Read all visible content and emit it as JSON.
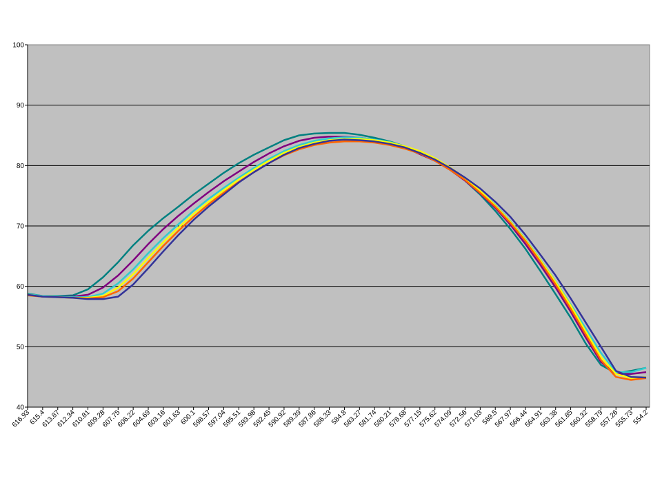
{
  "chart_data": {
    "type": "line",
    "categories": [
      "616.93",
      "615.4",
      "613.87",
      "612.34",
      "610.81",
      "609.28",
      "607.75",
      "606.22",
      "604.69",
      "603.16",
      "601.63",
      "600.1",
      "598.57",
      "597.04",
      "595.51",
      "593.98",
      "592.45",
      "590.92",
      "589.39",
      "587.86",
      "586.33",
      "584.8",
      "583.27",
      "581.74",
      "580.21",
      "578.68",
      "577.15",
      "575.62",
      "574.09",
      "572.56",
      "571.03",
      "569.5",
      "567.97",
      "566.44",
      "564.91",
      "563.38",
      "561.85",
      "560.32",
      "558.79",
      "557.26",
      "555.73",
      "554.2"
    ],
    "series": [
      {
        "color": "#008080",
        "values": [
          58.8,
          58.4,
          58.4,
          58.5,
          59.5,
          61.5,
          64,
          66.8,
          69.2,
          71.3,
          73.2,
          75.2,
          77,
          78.8,
          80.4,
          81.8,
          83,
          84.2,
          85,
          85.3,
          85.4,
          85.4,
          85.1,
          84.6,
          84,
          83.2,
          82,
          80.8,
          79.5,
          77.5,
          75.2,
          72.5,
          69.5,
          66.2,
          62.5,
          58.7,
          54.8,
          50.5,
          47,
          45.6,
          46,
          46.5
        ]
      },
      {
        "color": "#800080",
        "values": [
          58.6,
          58.3,
          58.3,
          58.3,
          58.6,
          59.8,
          61.8,
          64.3,
          67,
          69.5,
          71.7,
          73.7,
          75.6,
          77.4,
          79,
          80.6,
          82,
          83.2,
          84.1,
          84.6,
          84.8,
          84.8,
          84.6,
          84.3,
          83.8,
          83,
          81.9,
          80.8,
          79.3,
          77.5,
          75.4,
          73,
          70.2,
          67,
          63.5,
          59.8,
          55.8,
          51.5,
          47.5,
          45.5,
          45.5,
          45.8
        ]
      },
      {
        "color": "#33cccc",
        "values": [
          58.7,
          58.4,
          58.3,
          58.2,
          58.2,
          58.8,
          60.5,
          62.8,
          65.5,
          68,
          70.3,
          72.5,
          74.5,
          76.3,
          78,
          79.6,
          81.1,
          82.4,
          83.4,
          84.1,
          84.5,
          84.7,
          84.6,
          84.3,
          83.9,
          83.2,
          82.3,
          81,
          79.6,
          77.8,
          75.8,
          73.5,
          70.8,
          67.8,
          64.4,
          60.8,
          57,
          53,
          49,
          45.8,
          45.8,
          46.5
        ]
      },
      {
        "color": "#ffff00",
        "values": [
          58.6,
          58.3,
          58.2,
          58.1,
          58.1,
          58.4,
          59.8,
          62,
          64.7,
          67.3,
          69.7,
          72,
          74,
          75.9,
          77.7,
          79.3,
          80.8,
          82.1,
          83.1,
          83.8,
          84.2,
          84.4,
          84.4,
          84.2,
          83.8,
          83.2,
          82.4,
          81.2,
          79.7,
          77.9,
          75.8,
          73.4,
          70.7,
          67.7,
          64.3,
          60.7,
          56.8,
          52.5,
          48.3,
          45.5,
          44.8,
          45
        ]
      },
      {
        "color": "#ff6600",
        "values": [
          58.5,
          58.3,
          58.2,
          58.1,
          58,
          58.2,
          59.2,
          61.3,
          64,
          66.7,
          69.2,
          71.5,
          73.6,
          75.5,
          77.3,
          78.9,
          80.4,
          81.7,
          82.7,
          83.4,
          83.8,
          84,
          84,
          83.8,
          83.4,
          82.8,
          82,
          80.8,
          79.3,
          77.6,
          75.5,
          73.2,
          70.5,
          67.5,
          64,
          60.3,
          56.3,
          52,
          47.8,
          45,
          44.5,
          44.8
        ]
      },
      {
        "color": "#333399",
        "values": [
          58.6,
          58.3,
          58.2,
          58.1,
          57.9,
          57.9,
          58.3,
          60.3,
          63,
          65.8,
          68.5,
          71,
          73.2,
          75.2,
          77.2,
          78.9,
          80.4,
          81.8,
          82.9,
          83.6,
          84.1,
          84.3,
          84.2,
          84,
          83.6,
          83,
          82.1,
          81,
          79.6,
          78,
          76.2,
          74,
          71.5,
          68.5,
          65.2,
          61.8,
          58,
          54,
          50,
          46,
          45,
          44.9
        ]
      }
    ],
    "ylim": [
      40,
      100
    ],
    "yticks": [
      40,
      50,
      60,
      70,
      80,
      90,
      100
    ],
    "grid": true
  }
}
